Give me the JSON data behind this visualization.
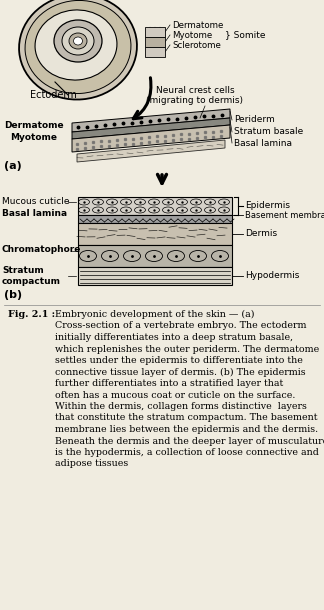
{
  "bg_color": "#f0ece0",
  "text_color": "#000000",
  "caption_bold": "Fig. 2.1 : ",
  "caption_text": "Embryonic development of the skin — (a) Cross-section of a vertebrate embryo. The ectoderm initially differentiates into a deep stratum basale, which replenishes the outer periderm. The dermatome settles under the epidermis to differentiate into the connective tissue layer of dermis. (b) The epidermis further differentiates into a stratified layer that often has a mucous coat or cuticle on the surface. Within the dermis, collagen forms distinctive  layers that constitute the stratum compactum. The basement membrane lies between the epidermis and the dermis. Beneath the dermis and the deeper layer of musculature is the hypodermis, a collection of loose connective and adipose tissues",
  "part_a_label": "(a)",
  "part_b_label": "(b)",
  "somite_labels": [
    "Dermatome",
    "Myotome",
    "Sclerotome"
  ],
  "somite_brace": "Somite",
  "ectoderm_label": "Ectoderm",
  "neural_crest_label": "Neural crest cells\n(migrating to dermis)",
  "dermatome_label": "Dermatome",
  "myotome_label": "Myotome",
  "periderm_label": "Periderm",
  "stratum_basale_label": "Stratum basale",
  "basal_lamina_label_a": "Basal lamina",
  "mucous_cuticle_label": "Mucous cuticle",
  "basal_lamina_label_b": "Basal lamina",
  "chromatophore_label": "Chromatophore",
  "stratum_compactum_label": "Stratum\ncompactum",
  "epidermis_label": "Epidermis",
  "basement_membrane_label": "Basement membrane",
  "dermis_label": "Dermis",
  "hypodermis_label": "Hypodermis"
}
